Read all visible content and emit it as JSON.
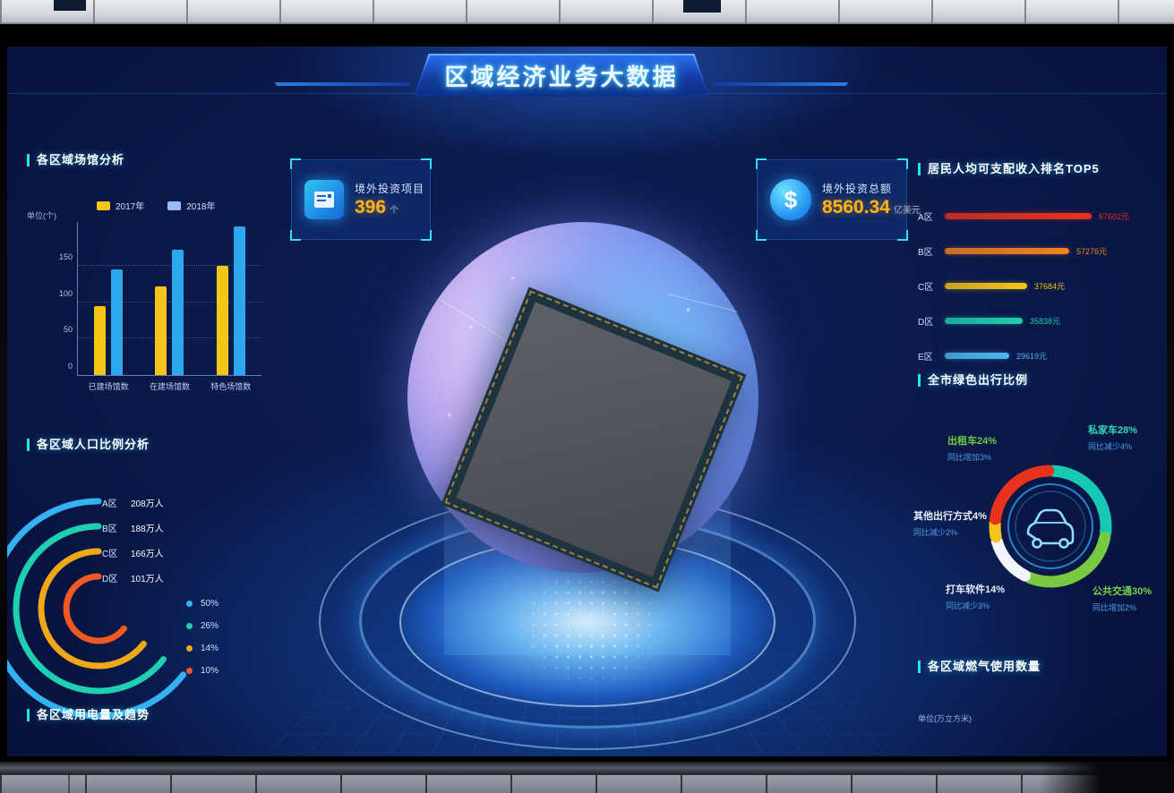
{
  "banner": {
    "title": "区域经济业务大数据"
  },
  "accent_colors": {
    "panel_accent": "#19e8e8",
    "gold": "#ffb414",
    "screen_bg": "#081440"
  },
  "stat_boxes": [
    {
      "icon": "folder-doc-icon",
      "label": "境外投资项目",
      "value": "396",
      "unit": "个"
    },
    {
      "icon": "dollar-icon",
      "label": "境外投资总额",
      "value": "8560.34",
      "unit": "亿美元"
    }
  ],
  "panels": {
    "electricity": {
      "title": "各区域用电量及趋势"
    },
    "gas": {
      "title": "各区域燃气使用数量",
      "unit_label": "单位(万立方米)"
    }
  },
  "chart_data": [
    {
      "id": "venues",
      "type": "bar",
      "title": "各区域场馆分析",
      "unit_label": "单位(个)",
      "categories": [
        "已建场馆数",
        "在建场馆数",
        "特色场馆数"
      ],
      "series": [
        {
          "name": "2017年",
          "color": "#f5c518",
          "swatch": "#f5c518",
          "values": [
            95,
            122,
            150
          ]
        },
        {
          "name": "2018年",
          "color": "#2ba8f0",
          "swatch": "#9db9f5",
          "values": [
            145,
            172,
            205
          ]
        }
      ],
      "yticks": [
        0,
        50,
        100,
        150
      ],
      "ylim": [
        0,
        212
      ],
      "grid": "dotted"
    },
    {
      "id": "income",
      "type": "bar-horizontal",
      "title": "居民人均可支配收入排名TOP5",
      "xmax": 70000,
      "rows": [
        {
          "label": "A区",
          "value": "67602元",
          "num": 67602,
          "color": "#e8321e"
        },
        {
          "label": "B区",
          "value": "57276元",
          "num": 57276,
          "color": "#f5821e"
        },
        {
          "label": "C区",
          "value": "37684元",
          "num": 37684,
          "color": "#f5c518"
        },
        {
          "label": "D区",
          "value": "35838元",
          "num": 35838,
          "color": "#1ecfb0"
        },
        {
          "label": "E区",
          "value": "29619元",
          "num": 29619,
          "color": "#4db8f0"
        }
      ]
    },
    {
      "id": "population",
      "type": "arc-rings",
      "title": "各区域人口比例分析",
      "rows": [
        {
          "label": "A区",
          "value": "208万人",
          "color": "#35b0f0"
        },
        {
          "label": "B区",
          "value": "188万人",
          "color": "#1ecfb0"
        },
        {
          "label": "C区",
          "value": "166万人",
          "color": "#f0a818"
        },
        {
          "label": "D区",
          "value": "101万人",
          "color": "#f05a22"
        }
      ],
      "legend": [
        {
          "label": "50%",
          "color": "#35b0f0"
        },
        {
          "label": "26%",
          "color": "#1ecfb0"
        },
        {
          "label": "14%",
          "color": "#f0a818"
        },
        {
          "label": "10%",
          "color": "#f05a22"
        }
      ]
    },
    {
      "id": "travel",
      "type": "pie",
      "title": "全市绿色出行比例",
      "slices": [
        {
          "label": "私家车28%",
          "sub": "同比减少4%",
          "pct": 28,
          "color": "#17c8b4",
          "label_color": "#2fd9b8"
        },
        {
          "label": "公共交通30%",
          "sub": "同比增加2%",
          "pct": 30,
          "color": "#7ac943",
          "label_color": "#7ace4a"
        },
        {
          "label": "打车软件14%",
          "sub": "同比减少3%",
          "pct": 14,
          "color": "#f2f5fa",
          "label_color": "#e8f0fa"
        },
        {
          "label": "其他出行方式4%",
          "sub": "同比减少2%",
          "pct": 4,
          "color": "#f5c518",
          "label_color": "#e8f0fa"
        },
        {
          "label": "出租车24%",
          "sub": "同比增加3%",
          "pct": 24,
          "color": "#e8321e",
          "label_color": "#6fce3a"
        }
      ],
      "center_icon": "car-icon"
    }
  ]
}
